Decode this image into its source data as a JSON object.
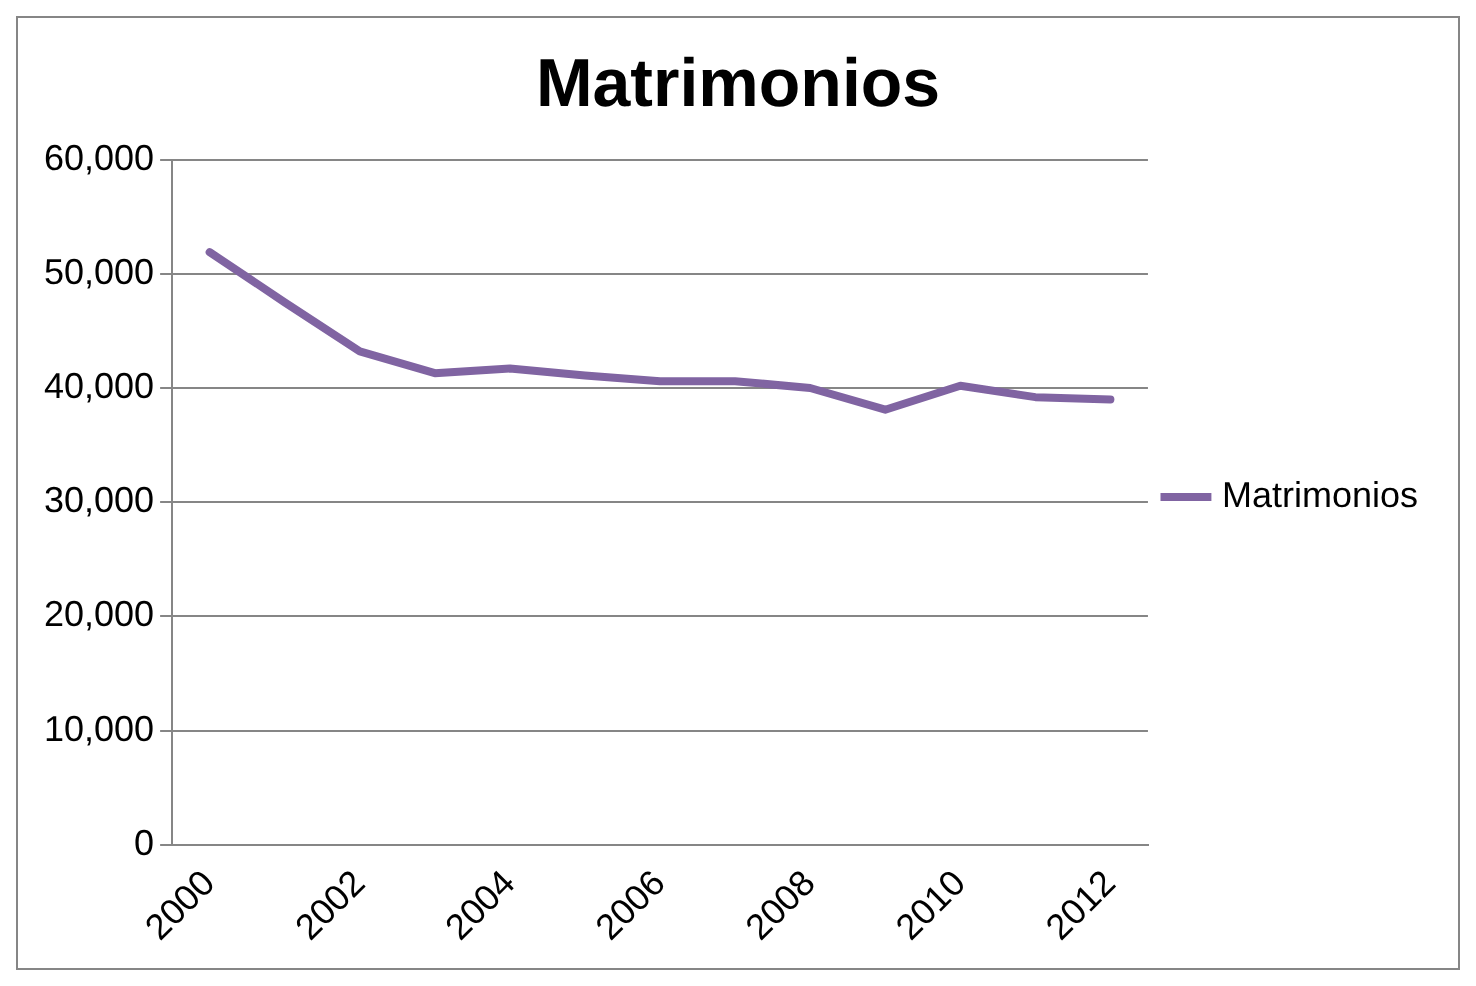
{
  "chart_data": {
    "type": "line",
    "title": "Matrimonios",
    "categories": [
      "2000",
      null,
      "2002",
      null,
      "2004",
      null,
      "2006",
      null,
      "2008",
      null,
      "2010",
      null,
      "2012"
    ],
    "series": [
      {
        "name": "Matrimonios",
        "color": "#8064a2",
        "values": [
          51900,
          47500,
          43200,
          41300,
          41700,
          41100,
          40600,
          40600,
          40000,
          38100,
          40200,
          39200,
          39000
        ]
      }
    ],
    "ylim": [
      0,
      60000
    ],
    "yticks": [
      {
        "value": 0,
        "label": "0"
      },
      {
        "value": 10000,
        "label": "10,000"
      },
      {
        "value": 20000,
        "label": "20,000"
      },
      {
        "value": 30000,
        "label": "30,000"
      },
      {
        "value": 40000,
        "label": "40,000"
      },
      {
        "value": 50000,
        "label": "50,000"
      },
      {
        "value": 60000,
        "label": "60,000"
      }
    ],
    "grid": "y",
    "legend": "right",
    "marker": "none",
    "line_style": "solid"
  }
}
